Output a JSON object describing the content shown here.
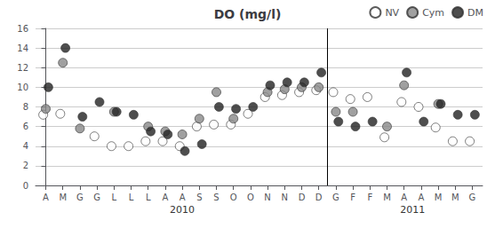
{
  "chart_data": {
    "type": "scatter",
    "title": "DO (mg/l)",
    "categories": [
      "A",
      "M",
      "G",
      "G",
      "L",
      "L",
      "L",
      "A",
      "A",
      "S",
      "S",
      "O",
      "O",
      "N",
      "N",
      "D",
      "D",
      "G",
      "F",
      "F",
      "M",
      "A",
      "A",
      "M",
      "M",
      "G"
    ],
    "series": [
      {
        "name": "NV",
        "color": "#ffffff",
        "values": [
          7.2,
          7.3,
          null,
          5.0,
          4.0,
          4.0,
          4.5,
          4.5,
          4.0,
          6.0,
          6.2,
          6.2,
          7.3,
          9.0,
          9.2,
          9.5,
          9.7,
          9.5,
          8.8,
          9.0,
          4.9,
          8.5,
          8.0,
          5.9,
          4.5,
          4.5
        ]
      },
      {
        "name": "Cym",
        "color": "#888888",
        "values": [
          7.8,
          12.5,
          5.8,
          null,
          7.5,
          null,
          6.0,
          5.5,
          5.2,
          6.8,
          9.5,
          6.8,
          null,
          9.5,
          9.8,
          10.0,
          10.0,
          7.5,
          7.5,
          null,
          6.0,
          10.2,
          null,
          8.3,
          null,
          null
        ]
      },
      {
        "name": "DM",
        "color": "#222222",
        "values": [
          10.0,
          14.0,
          7.0,
          8.5,
          7.5,
          7.2,
          5.5,
          5.2,
          3.5,
          4.2,
          8.0,
          7.8,
          8.0,
          10.2,
          10.5,
          10.5,
          11.5,
          6.5,
          6.0,
          6.5,
          null,
          11.5,
          6.5,
          8.3,
          7.2,
          7.2
        ]
      }
    ],
    "annotations": [
      {
        "text": "2010",
        "x": 8.0
      },
      {
        "text": "2011",
        "x": 21.5
      }
    ],
    "vlines": [
      16.5
    ],
    "ylim": [
      0,
      16
    ],
    "yticks": [
      0,
      2,
      4,
      6,
      8,
      10,
      12,
      14,
      16
    ],
    "grid": true,
    "legend": "upper right"
  }
}
